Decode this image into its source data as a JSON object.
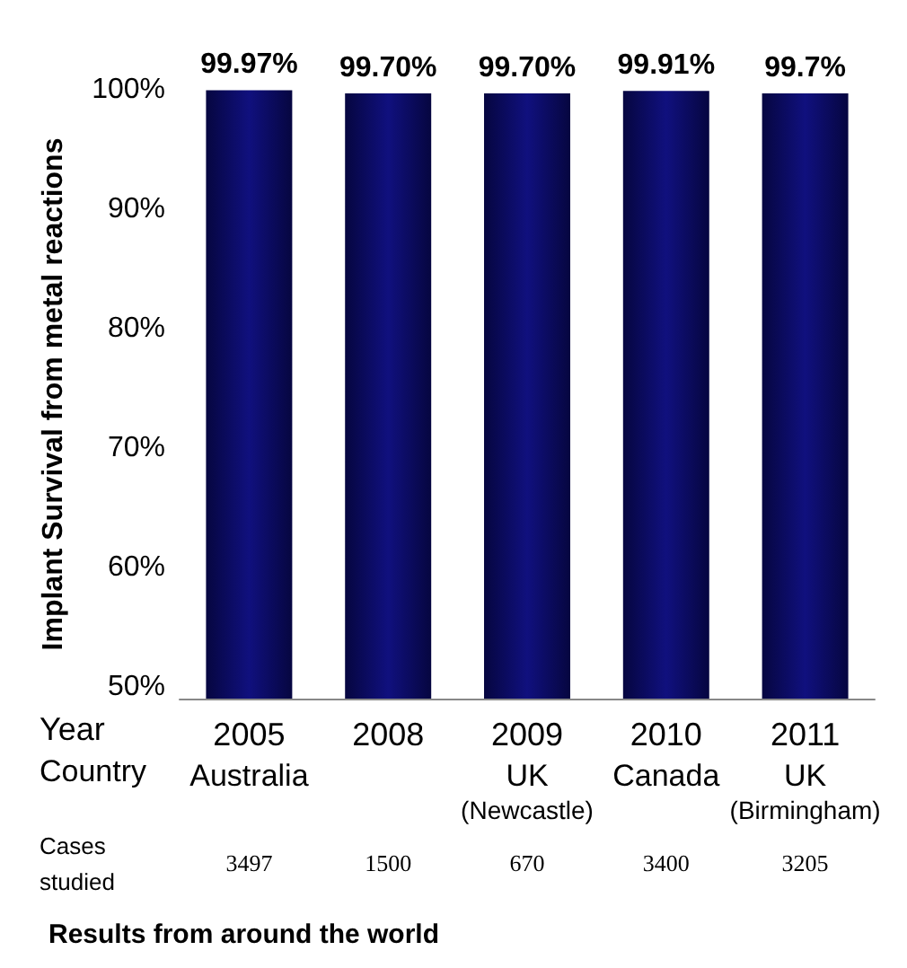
{
  "chart_data": {
    "type": "bar",
    "categories": [
      "2005\nAustralia\n\n3497",
      "2008\n\n\n1500",
      "2009\nUK\n(Newcastle)\n670",
      "2010\nCanada\n\n3400",
      "2011\nUK\n(Birmingham)\n3205"
    ],
    "values": [
      99.97,
      99.7,
      99.7,
      99.91,
      99.7
    ],
    "value_labels": [
      "99.97%",
      "99.70%",
      "99.70%",
      "99.91%",
      "99.7%"
    ],
    "color": "#10107e",
    "ylim": [
      49,
      100
    ],
    "yticks": [
      {
        "value": 50,
        "label": "50%"
      },
      {
        "value": 60,
        "label": "60%"
      },
      {
        "value": 70,
        "label": "70%"
      },
      {
        "value": 80,
        "label": "80%"
      },
      {
        "value": 90,
        "label": "90%"
      },
      {
        "value": 100,
        "label": "100%"
      }
    ],
    "ylabel": "Implant Survival from metal reactions",
    "xlabel": "Results from around the world",
    "annotations": [
      "Year",
      "Country",
      "Cases\nstudied"
    ]
  }
}
